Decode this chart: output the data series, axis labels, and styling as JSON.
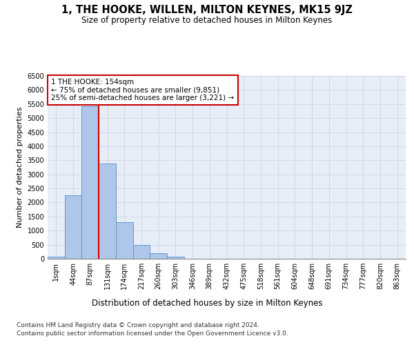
{
  "title": "1, THE HOOKE, WILLEN, MILTON KEYNES, MK15 9JZ",
  "subtitle": "Size of property relative to detached houses in Milton Keynes",
  "xlabel": "Distribution of detached houses by size in Milton Keynes",
  "ylabel": "Number of detached properties",
  "footer_line1": "Contains HM Land Registry data © Crown copyright and database right 2024.",
  "footer_line2": "Contains public sector information licensed under the Open Government Licence v3.0.",
  "categories": [
    "1sqm",
    "44sqm",
    "87sqm",
    "131sqm",
    "174sqm",
    "217sqm",
    "260sqm",
    "303sqm",
    "346sqm",
    "389sqm",
    "432sqm",
    "475sqm",
    "518sqm",
    "561sqm",
    "604sqm",
    "648sqm",
    "691sqm",
    "734sqm",
    "777sqm",
    "820sqm",
    "863sqm"
  ],
  "values": [
    75,
    2250,
    5430,
    3380,
    1290,
    490,
    185,
    70,
    5,
    0,
    0,
    0,
    0,
    0,
    0,
    0,
    0,
    0,
    0,
    0,
    0
  ],
  "bar_color": "#aec6e8",
  "bar_edge_color": "#5b9bd5",
  "property_line_bin_index": 2.5,
  "property_line_color": "#cc0000",
  "annotation_text": "1 THE HOOKE: 154sqm\n← 75% of detached houses are smaller (9,851)\n25% of semi-detached houses are larger (3,221) →",
  "annotation_box_color": "#ffffff",
  "annotation_box_edge_color": "#cc0000",
  "ylim": [
    0,
    6500
  ],
  "yticks": [
    0,
    500,
    1000,
    1500,
    2000,
    2500,
    3000,
    3500,
    4000,
    4500,
    5000,
    5500,
    6000,
    6500
  ],
  "grid_color": "#d0d8e8",
  "background_color": "#e8eef8",
  "title_fontsize": 10.5,
  "subtitle_fontsize": 8.5,
  "xlabel_fontsize": 8.5,
  "ylabel_fontsize": 8,
  "tick_fontsize": 7,
  "annotation_fontsize": 7.5,
  "footer_fontsize": 6.5
}
